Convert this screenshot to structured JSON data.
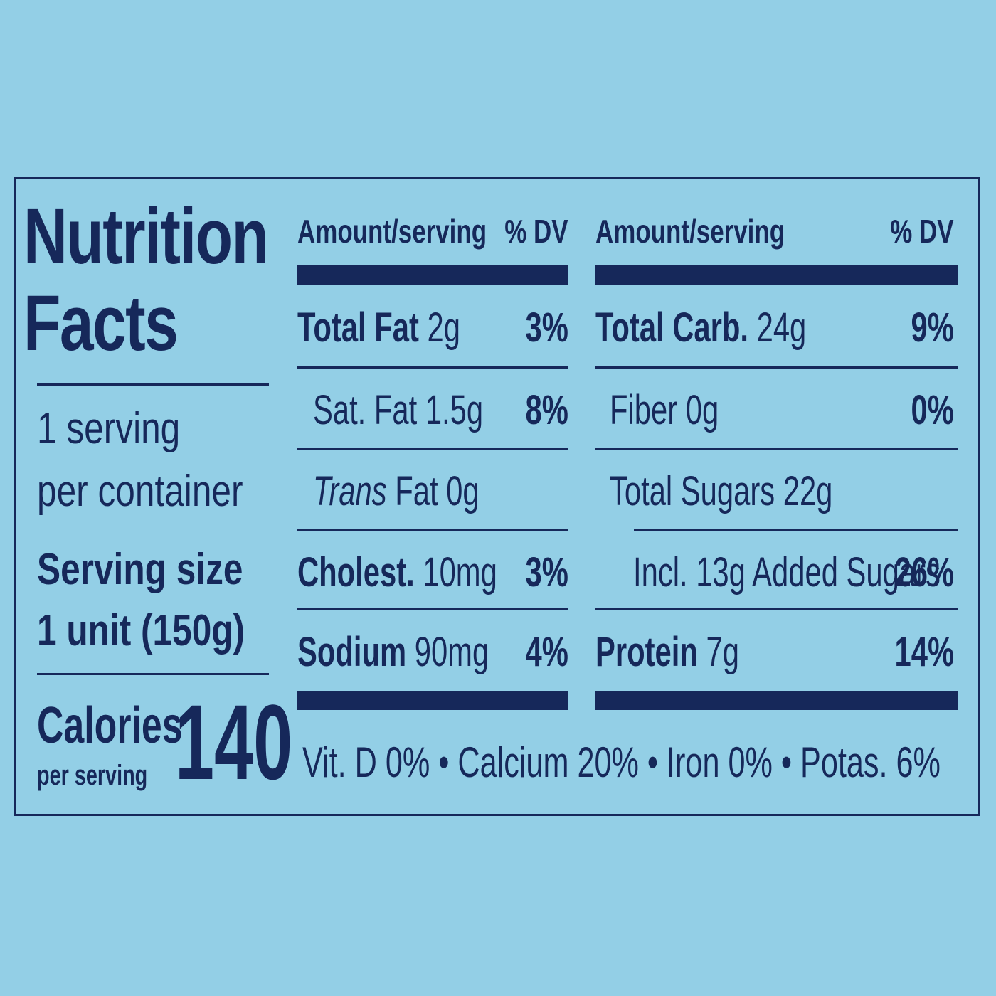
{
  "background_color": "#93cfe6",
  "ink_color": "#16285a",
  "title_line1": "Nutrition",
  "title_line2": "Facts",
  "servings_line1": "1 serving",
  "servings_line2": "per container",
  "serving_size_label": "Serving size",
  "serving_size_value": "1 unit (150g)",
  "calories_label": "Calories",
  "calories_sub": "per serving",
  "calories_value": "140",
  "left_column": {
    "header_amount": "Amount/serving",
    "header_dv": "% DV",
    "rows": [
      {
        "label": "Total Fat",
        "amount": " 2g",
        "dv": "3%"
      },
      {
        "label": "Sat. Fat 1.5g",
        "amount": "",
        "dv": "8%"
      },
      {
        "label_italic": "Trans",
        "label": " Fat 0g",
        "dv": ""
      },
      {
        "label": "Cholest.",
        "amount": " 10mg",
        "dv": "3%"
      },
      {
        "label": "Sodium",
        "amount": " 90mg",
        "dv": "4%"
      }
    ]
  },
  "right_column": {
    "header_amount": "Amount/serving",
    "header_dv": "% DV",
    "rows": [
      {
        "label": "Total Carb.",
        "amount": " 24g",
        "dv": "9%"
      },
      {
        "label": "Fiber 0g",
        "amount": "",
        "dv": "0%"
      },
      {
        "label": "Total Sugars 22g",
        "amount": "",
        "dv": ""
      },
      {
        "label": "Incl. 13g Added Sugars",
        "amount": "",
        "dv": "26%"
      },
      {
        "label": "Protein",
        "amount": " 7g",
        "dv": "14%"
      }
    ]
  },
  "footer": "Vit. D 0% • Calcium 20% • Iron 0% • Potas. 6%"
}
